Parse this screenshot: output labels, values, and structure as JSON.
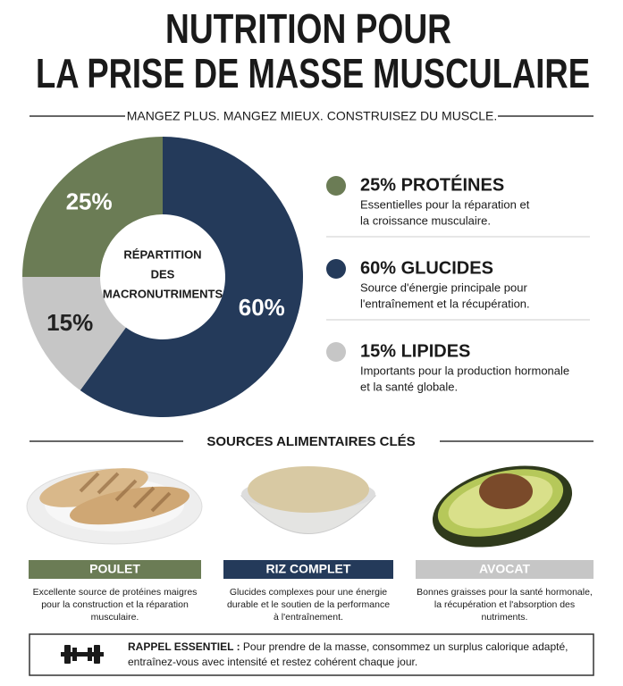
{
  "header": {
    "title_lines": [
      "NUTRITION POUR",
      "LA PRISE DE MASSE MUSCULAIRE"
    ],
    "subtitle": "MANGEZ PLUS. MANGEZ MIEUX. CONSTRUISEZ DU MUSCLE."
  },
  "chart_data": {
    "type": "pie",
    "center_label": [
      "RÉPARTITION",
      "DES",
      "MACRONUTRIMENTS"
    ],
    "categories": [
      "PROTÉINES",
      "GLUCIDES",
      "LIPIDES"
    ],
    "values": [
      25,
      60,
      15
    ],
    "value_labels": [
      "25%",
      "60%",
      "15%"
    ],
    "colors": [
      "#6b7c55",
      "#243a5a",
      "#c6c6c6"
    ]
  },
  "legend": [
    {
      "title": "25% PROTÉINES",
      "text": [
        "Essentielles pour la réparation et",
        "la croissance musculaire."
      ]
    },
    {
      "title": "60% GLUCIDES",
      "text": [
        "Source d'énergie principale pour",
        "l'entraînement et la récupération."
      ]
    },
    {
      "title": "15% LIPIDES",
      "text": [
        "Importants pour la production hormonale",
        "et la santé globale."
      ]
    }
  ],
  "sources": {
    "title": "SOURCES ALIMENTAIRES CLÉS",
    "items": [
      {
        "name": "POULET",
        "text": [
          "Excellente source de protéines maigres",
          "pour la construction et la réparation",
          "musculaire."
        ]
      },
      {
        "name": "RIZ COMPLET",
        "text": [
          "Glucides complexes pour une énergie",
          "durable et le soutien de la performance",
          "à l'entraînement."
        ]
      },
      {
        "name": "AVOCAT",
        "text": [
          "Bonnes graisses pour la santé hormonale,",
          "la récupération et l'absorption des",
          "nutriments."
        ]
      }
    ]
  },
  "note": {
    "label": "RAPPEL ESSENTIEL :",
    "text": [
      " Pour prendre de la masse, consommez un surplus calorique adapté,",
      "entraînez-vous avec intensité et restez cohérent chaque jour."
    ]
  }
}
